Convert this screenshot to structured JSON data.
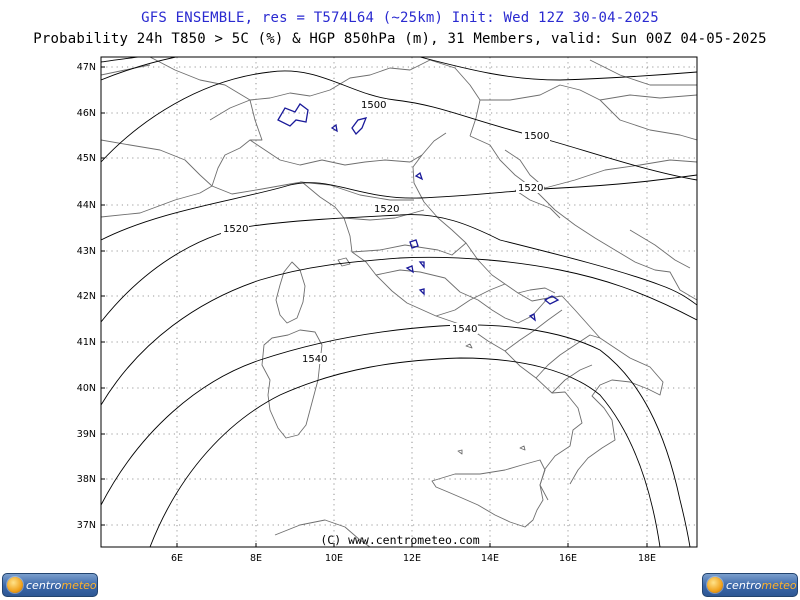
{
  "header": {
    "line1": "GFS ENSEMBLE, res = T574L64 (~25km)    Init: Wed 12Z 30-04-2025",
    "line2": "Probability 24h T850 > 5C (%) & HGP 850hPa (m), 31 Members, valid: Sun 00Z 04-05-2025"
  },
  "map": {
    "lat_labels": [
      "47N",
      "46N",
      "45N",
      "44N",
      "43N",
      "42N",
      "41N",
      "40N",
      "39N",
      "38N",
      "37N"
    ],
    "lon_labels": [
      "6E",
      "8E",
      "10E",
      "12E",
      "14E",
      "16E",
      "18E"
    ],
    "contour_labels": [
      "1500",
      "1500",
      "1520",
      "1520",
      "1520",
      "1540",
      "1540"
    ],
    "copyright": "(C) www.centrometeo.com",
    "grid": "dotted",
    "colors": {
      "coast": "#6e6e6e",
      "contour": "#000000",
      "probability": "#1a1a9a",
      "title": "#2a2ad0"
    }
  },
  "footer": {
    "logo_left": {
      "word1": "centro",
      "word2": "meteo"
    },
    "logo_right": {
      "word1": "centro",
      "word2": "meteo"
    }
  }
}
